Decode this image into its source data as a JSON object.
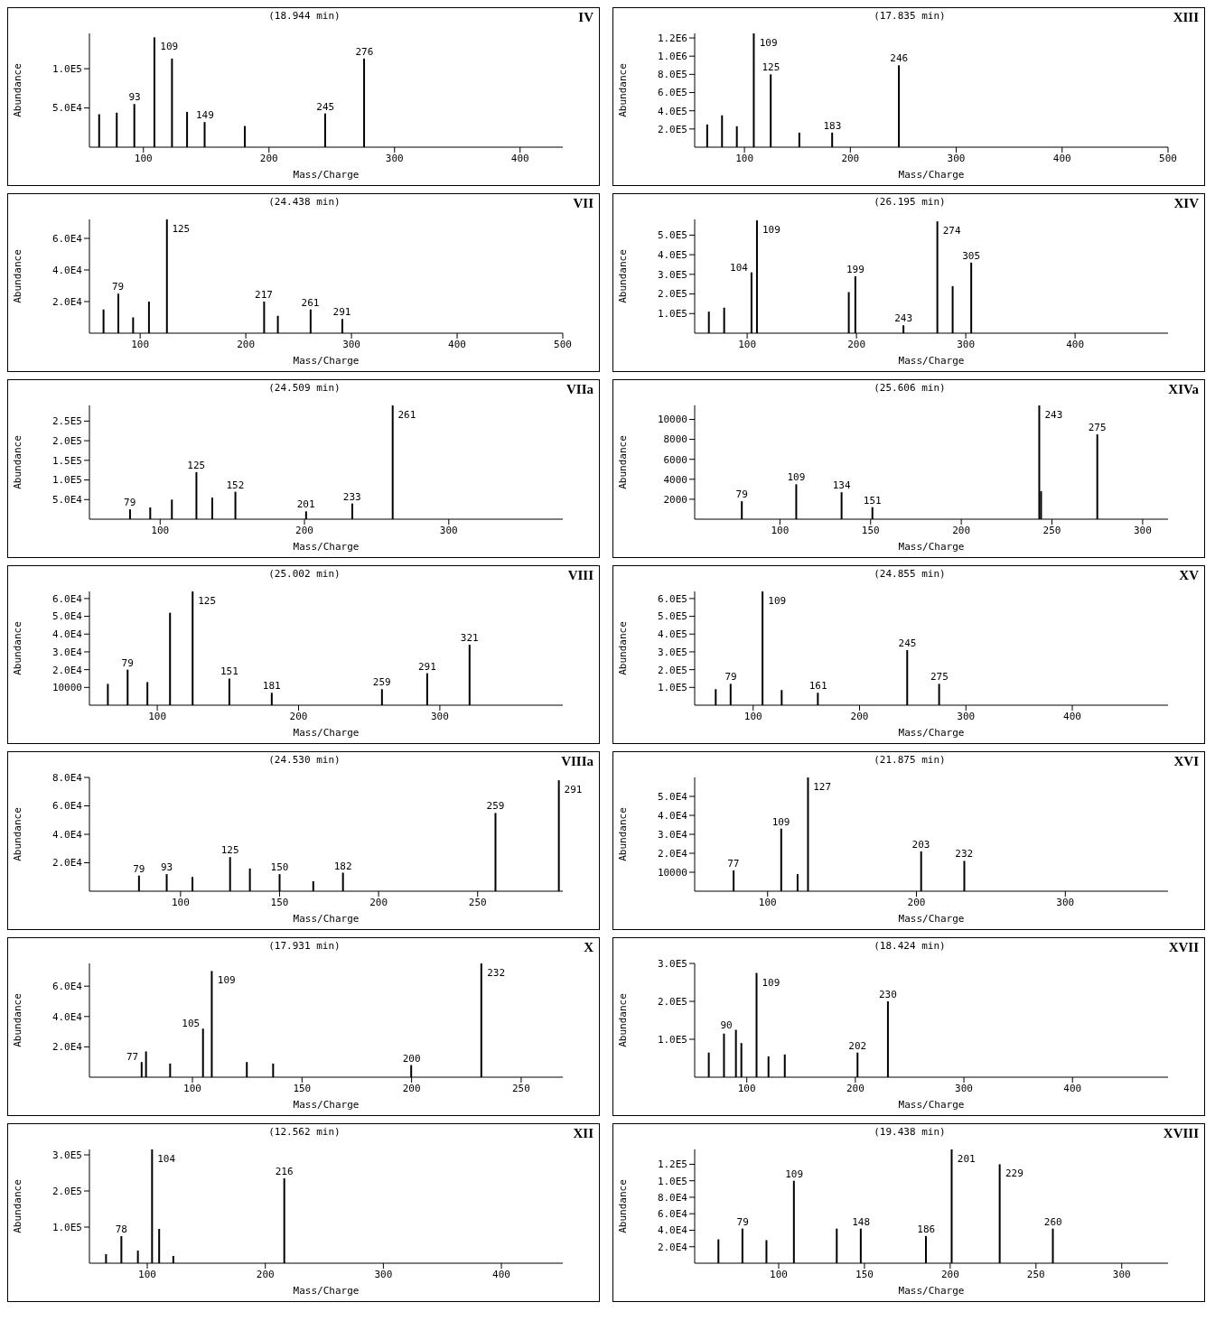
{
  "chart_data": [
    {
      "type": "bar",
      "title": "(18.944 min)",
      "xlabel": "Mass/Charge",
      "ylabel": "Abundance",
      "color": "#000000",
      "x": [
        65,
        79,
        93,
        109,
        123,
        135,
        149,
        181,
        245,
        276
      ],
      "values": [
        42000,
        44000,
        55000,
        140000,
        113000,
        45000,
        32000,
        27000,
        43000,
        113000
      ],
      "xlim": [
        57,
        434
      ],
      "ylim": [
        0,
        145000
      ],
      "xticks": [
        100,
        200,
        300,
        400
      ],
      "yticks": [
        {
          "value": 50000,
          "label": "5.0E4"
        },
        {
          "value": 100000,
          "label": "1.0E5"
        }
      ],
      "annotations": [
        "IV",
        {
          "text": "93",
          "x": 93,
          "y": 55000
        },
        {
          "text": "109",
          "x": 109,
          "y": 140000
        },
        {
          "text": "149",
          "x": 149,
          "y": 32000
        },
        {
          "text": "245",
          "x": 245,
          "y": 43000
        },
        {
          "text": "276",
          "x": 276,
          "y": 113000
        }
      ]
    },
    {
      "type": "bar",
      "title": "(17.835 min)",
      "xlabel": "Mass/Charge",
      "ylabel": "Abundance",
      "color": "#000000",
      "x": [
        65,
        79,
        93,
        109,
        125,
        152,
        183,
        246
      ],
      "values": [
        250000,
        350000,
        230000,
        1250000,
        800000,
        160000,
        160000,
        900000
      ],
      "xlim": [
        53,
        500
      ],
      "ylim": [
        0,
        1250000
      ],
      "xticks": [
        100,
        200,
        300,
        400,
        500
      ],
      "yticks": [
        {
          "value": 200000,
          "label": "2.0E5"
        },
        {
          "value": 400000,
          "label": "4.0E5"
        },
        {
          "value": 600000,
          "label": "6.0E5"
        },
        {
          "value": 800000,
          "label": "8.0E5"
        },
        {
          "value": 1000000,
          "label": "1.0E6"
        },
        {
          "value": 1200000,
          "label": "1.2E6"
        }
      ],
      "annotations": [
        "XIII",
        {
          "text": "109",
          "x": 109,
          "y": 1250000
        },
        {
          "text": "125",
          "x": 125,
          "y": 800000
        },
        {
          "text": "183",
          "x": 183,
          "y": 160000
        },
        {
          "text": "246",
          "x": 246,
          "y": 900000
        }
      ]
    },
    {
      "type": "bar",
      "title": "(24.438 min)",
      "xlabel": "Mass/Charge",
      "ylabel": "Abundance",
      "color": "#000000",
      "x": [
        65,
        79,
        93,
        108,
        125,
        217,
        230,
        261,
        291
      ],
      "values": [
        15000,
        25000,
        10000,
        20000,
        72000,
        20000,
        11000,
        15000,
        9000
      ],
      "xlim": [
        52,
        500
      ],
      "ylim": [
        0,
        72000
      ],
      "xticks": [
        100,
        200,
        300,
        400,
        500
      ],
      "yticks": [
        {
          "value": 20000,
          "label": "2.0E4"
        },
        {
          "value": 40000,
          "label": "4.0E4"
        },
        {
          "value": 60000,
          "label": "6.0E4"
        }
      ],
      "annotations": [
        "VII",
        {
          "text": "79",
          "x": 79,
          "y": 25000
        },
        {
          "text": "125",
          "x": 125,
          "y": 72000
        },
        {
          "text": "217",
          "x": 217,
          "y": 20000
        },
        {
          "text": "261",
          "x": 261,
          "y": 15000
        },
        {
          "text": "291",
          "x": 291,
          "y": 9000
        }
      ]
    },
    {
      "type": "bar",
      "title": "(26.195 min)",
      "xlabel": "Mass/Charge",
      "ylabel": "Abundance",
      "color": "#000000",
      "x": [
        65,
        79,
        104,
        109,
        193,
        199,
        243,
        274,
        288,
        305
      ],
      "values": [
        110000,
        130000,
        310000,
        575000,
        210000,
        290000,
        40000,
        570000,
        240000,
        360000
      ],
      "xlim": [
        52,
        485
      ],
      "ylim": [
        0,
        580000
      ],
      "xticks": [
        100,
        200,
        300,
        400
      ],
      "yticks": [
        {
          "value": 100000,
          "label": "1.0E5"
        },
        {
          "value": 200000,
          "label": "2.0E5"
        },
        {
          "value": 300000,
          "label": "3.0E5"
        },
        {
          "value": 400000,
          "label": "4.0E5"
        },
        {
          "value": 500000,
          "label": "5.0E5"
        }
      ],
      "annotations": [
        "XIV",
        {
          "text": "104",
          "x": 104,
          "y": 310000
        },
        {
          "text": "109",
          "x": 109,
          "y": 575000
        },
        {
          "text": "199",
          "x": 199,
          "y": 290000
        },
        {
          "text": "243",
          "x": 243,
          "y": 40000
        },
        {
          "text": "274",
          "x": 274,
          "y": 570000
        },
        {
          "text": "305",
          "x": 305,
          "y": 360000
        }
      ]
    },
    {
      "type": "bar",
      "title": "(24.509 min)",
      "xlabel": "Mass/Charge",
      "ylabel": "Abundance",
      "color": "#000000",
      "x": [
        79,
        93,
        108,
        125,
        136,
        152,
        201,
        233,
        261
      ],
      "values": [
        25000,
        30000,
        50000,
        120000,
        55000,
        70000,
        20000,
        40000,
        290000
      ],
      "xlim": [
        51,
        379
      ],
      "ylim": [
        0,
        290000
      ],
      "xticks": [
        100,
        200,
        300
      ],
      "yticks": [
        {
          "value": 50000,
          "label": "5.0E4"
        },
        {
          "value": 100000,
          "label": "1.0E5"
        },
        {
          "value": 150000,
          "label": "1.5E5"
        },
        {
          "value": 200000,
          "label": "2.0E5"
        },
        {
          "value": 250000,
          "label": "2.5E5"
        }
      ],
      "annotations": [
        "VIIa",
        {
          "text": "79",
          "x": 79,
          "y": 25000
        },
        {
          "text": "125",
          "x": 125,
          "y": 120000
        },
        {
          "text": "152",
          "x": 152,
          "y": 70000
        },
        {
          "text": "201",
          "x": 201,
          "y": 20000
        },
        {
          "text": "233",
          "x": 233,
          "y": 40000
        },
        {
          "text": "261",
          "x": 261,
          "y": 290000
        }
      ]
    },
    {
      "type": "bar",
      "title": "(25.606 min)",
      "xlabel": "Mass/Charge",
      "ylabel": "Abundance",
      "color": "#000000",
      "x": [
        79,
        109,
        134,
        151,
        243,
        244,
        275
      ],
      "values": [
        1800,
        3500,
        2700,
        1200,
        11400,
        2800,
        8500
      ],
      "xlim": [
        53,
        314
      ],
      "ylim": [
        0,
        11400
      ],
      "xticks": [
        100,
        150,
        200,
        250,
        300
      ],
      "yticks": [
        2000,
        4000,
        6000,
        8000,
        10000
      ],
      "annotations": [
        "XIVa",
        {
          "text": "79",
          "x": 79,
          "y": 1800
        },
        {
          "text": "109",
          "x": 109,
          "y": 3500
        },
        {
          "text": "134",
          "x": 134,
          "y": 2700
        },
        {
          "text": "151",
          "x": 151,
          "y": 1200
        },
        {
          "text": "243",
          "x": 243,
          "y": 11400
        },
        {
          "text": "275",
          "x": 275,
          "y": 8500
        }
      ]
    },
    {
      "type": "bar",
      "title": "(25.002 min)",
      "xlabel": "Mass/Charge",
      "ylabel": "Abundance",
      "color": "#000000",
      "x": [
        65,
        79,
        93,
        109,
        125,
        151,
        181,
        259,
        291,
        321
      ],
      "values": [
        12000,
        20000,
        13000,
        52000,
        64000,
        15000,
        7000,
        9000,
        18000,
        34000
      ],
      "xlim": [
        52,
        387
      ],
      "ylim": [
        0,
        64000
      ],
      "xticks": [
        100,
        200,
        300
      ],
      "yticks": [
        10000,
        {
          "value": 20000,
          "label": "2.0E4"
        },
        {
          "value": 30000,
          "label": "3.0E4"
        },
        {
          "value": 40000,
          "label": "4.0E4"
        },
        {
          "value": 50000,
          "label": "5.0E4"
        },
        {
          "value": 60000,
          "label": "6.0E4"
        }
      ],
      "annotations": [
        "VIII",
        {
          "text": "79",
          "x": 79,
          "y": 20000
        },
        {
          "text": "125",
          "x": 125,
          "y": 64000
        },
        {
          "text": "151",
          "x": 151,
          "y": 15000
        },
        {
          "text": "181",
          "x": 181,
          "y": 7000
        },
        {
          "text": "259",
          "x": 259,
          "y": 9000
        },
        {
          "text": "291",
          "x": 291,
          "y": 18000
        },
        {
          "text": "321",
          "x": 321,
          "y": 34000
        }
      ]
    },
    {
      "type": "bar",
      "title": "(24.855 min)",
      "xlabel": "Mass/Charge",
      "ylabel": "Abundance",
      "color": "#000000",
      "x": [
        65,
        79,
        109,
        127,
        161,
        245,
        275
      ],
      "values": [
        90000,
        120000,
        640000,
        85000,
        70000,
        310000,
        120000
      ],
      "xlim": [
        45,
        490
      ],
      "ylim": [
        0,
        640000
      ],
      "xticks": [
        100,
        200,
        300,
        400
      ],
      "yticks": [
        {
          "value": 100000,
          "label": "1.0E5"
        },
        {
          "value": 200000,
          "label": "2.0E5"
        },
        {
          "value": 300000,
          "label": "3.0E5"
        },
        {
          "value": 400000,
          "label": "4.0E5"
        },
        {
          "value": 500000,
          "label": "5.0E5"
        },
        {
          "value": 600000,
          "label": "6.0E5"
        }
      ],
      "annotations": [
        "XV",
        {
          "text": "79",
          "x": 79,
          "y": 120000
        },
        {
          "text": "109",
          "x": 109,
          "y": 640000
        },
        {
          "text": "161",
          "x": 161,
          "y": 70000
        },
        {
          "text": "245",
          "x": 245,
          "y": 310000
        },
        {
          "text": "275",
          "x": 275,
          "y": 120000
        }
      ]
    },
    {
      "type": "bar",
      "title": "(24.530 min)",
      "xlabel": "Mass/Charge",
      "ylabel": "Abundance",
      "color": "#000000",
      "x": [
        79,
        93,
        106,
        125,
        135,
        150,
        167,
        182,
        259,
        291
      ],
      "values": [
        11000,
        12000,
        10000,
        24000,
        16000,
        12000,
        7000,
        13000,
        55000,
        78000
      ],
      "xlim": [
        54,
        293
      ],
      "ylim": [
        0,
        80000
      ],
      "xticks": [
        100,
        150,
        200,
        250
      ],
      "yticks": [
        {
          "value": 20000,
          "label": "2.0E4"
        },
        {
          "value": 40000,
          "label": "4.0E4"
        },
        {
          "value": 60000,
          "label": "6.0E4"
        },
        {
          "value": 80000,
          "label": "8.0E4"
        }
      ],
      "annotations": [
        "VIIIa",
        {
          "text": "79",
          "x": 79,
          "y": 11000
        },
        {
          "text": "93",
          "x": 93,
          "y": 12000
        },
        {
          "text": "125",
          "x": 125,
          "y": 24000
        },
        {
          "text": "150",
          "x": 150,
          "y": 12000
        },
        {
          "text": "182",
          "x": 182,
          "y": 13000
        },
        {
          "text": "259",
          "x": 259,
          "y": 55000
        },
        {
          "text": "291",
          "x": 291,
          "y": 78000
        }
      ]
    },
    {
      "type": "bar",
      "title": "(21.875 min)",
      "xlabel": "Mass/Charge",
      "ylabel": "Abundance",
      "color": "#000000",
      "x": [
        77,
        109,
        120,
        127,
        203,
        232
      ],
      "values": [
        11000,
        33000,
        9000,
        60000,
        21000,
        16000
      ],
      "xlim": [
        51,
        369
      ],
      "ylim": [
        0,
        60000
      ],
      "xticks": [
        100,
        200,
        300
      ],
      "yticks": [
        10000,
        {
          "value": 20000,
          "label": "2.0E4"
        },
        {
          "value": 30000,
          "label": "3.0E4"
        },
        {
          "value": 40000,
          "label": "4.0E4"
        },
        {
          "value": 50000,
          "label": "5.0E4"
        }
      ],
      "annotations": [
        "XVI",
        {
          "text": "77",
          "x": 77,
          "y": 11000
        },
        {
          "text": "109",
          "x": 109,
          "y": 33000
        },
        {
          "text": "127",
          "x": 127,
          "y": 60000
        },
        {
          "text": "203",
          "x": 203,
          "y": 21000
        },
        {
          "text": "232",
          "x": 232,
          "y": 16000
        }
      ]
    },
    {
      "type": "bar",
      "title": "(17.931 min)",
      "xlabel": "Mass/Charge",
      "ylabel": "Abundance",
      "color": "#000000",
      "x": [
        77,
        79,
        90,
        105,
        109,
        125,
        137,
        200,
        232
      ],
      "values": [
        10000,
        17000,
        9000,
        32000,
        70000,
        10000,
        9000,
        8000,
        75000
      ],
      "xlim": [
        53,
        269
      ],
      "ylim": [
        0,
        75000
      ],
      "xticks": [
        100,
        150,
        200,
        250
      ],
      "yticks": [
        {
          "value": 20000,
          "label": "2.0E4"
        },
        {
          "value": 40000,
          "label": "4.0E4"
        },
        {
          "value": 60000,
          "label": "6.0E4"
        }
      ],
      "annotations": [
        "X",
        {
          "text": "77",
          "x": 77,
          "y": 10000
        },
        {
          "text": "105",
          "x": 105,
          "y": 32000
        },
        {
          "text": "109",
          "x": 109,
          "y": 70000
        },
        {
          "text": "200",
          "x": 200,
          "y": 8000
        },
        {
          "text": "232",
          "x": 232,
          "y": 75000
        }
      ]
    },
    {
      "type": "bar",
      "title": "(18.424 min)",
      "xlabel": "Mass/Charge",
      "ylabel": "Abundance",
      "color": "#000000",
      "x": [
        65,
        79,
        90,
        95,
        109,
        120,
        135,
        202,
        230
      ],
      "values": [
        65000,
        115000,
        125000,
        90000,
        275000,
        55000,
        60000,
        65000,
        200000
      ],
      "xlim": [
        52,
        488
      ],
      "ylim": [
        0,
        300000
      ],
      "xticks": [
        100,
        200,
        300,
        400
      ],
      "yticks": [
        {
          "value": 100000,
          "label": "1.0E5"
        },
        {
          "value": 200000,
          "label": "2.0E5"
        },
        {
          "value": 300000,
          "label": "3.0E5"
        }
      ],
      "annotations": [
        "XVII",
        {
          "text": "90",
          "x": 90,
          "y": 125000
        },
        {
          "text": "109",
          "x": 109,
          "y": 275000
        },
        {
          "text": "202",
          "x": 202,
          "y": 65000
        },
        {
          "text": "230",
          "x": 230,
          "y": 200000
        }
      ]
    },
    {
      "type": "bar",
      "title": "(12.562 min)",
      "xlabel": "Mass/Charge",
      "ylabel": "Abundance",
      "color": "#000000",
      "x": [
        65,
        78,
        92,
        104,
        110,
        122,
        216
      ],
      "values": [
        25000,
        75000,
        35000,
        315000,
        95000,
        20000,
        235000
      ],
      "xlim": [
        51,
        452
      ],
      "ylim": [
        0,
        315000
      ],
      "xticks": [
        100,
        200,
        300,
        400
      ],
      "yticks": [
        {
          "value": 100000,
          "label": "1.0E5"
        },
        {
          "value": 200000,
          "label": "2.0E5"
        },
        {
          "value": 300000,
          "label": "3.0E5"
        }
      ],
      "annotations": [
        "XII",
        {
          "text": "78",
          "x": 78,
          "y": 75000
        },
        {
          "text": "104",
          "x": 104,
          "y": 315000
        },
        {
          "text": "216",
          "x": 216,
          "y": 235000
        }
      ]
    },
    {
      "type": "bar",
      "title": "(19.438 min)",
      "xlabel": "Mass/Charge",
      "ylabel": "Abundance",
      "color": "#000000",
      "x": [
        65,
        79,
        93,
        109,
        134,
        148,
        186,
        201,
        229,
        260
      ],
      "values": [
        29000,
        42000,
        28000,
        100000,
        42000,
        42000,
        33000,
        138000,
        120000,
        42000
      ],
      "xlim": [
        51,
        327
      ],
      "ylim": [
        0,
        138000
      ],
      "xticks": [
        100,
        150,
        200,
        250,
        300
      ],
      "yticks": [
        {
          "value": 20000,
          "label": "2.0E4"
        },
        {
          "value": 40000,
          "label": "4.0E4"
        },
        {
          "value": 60000,
          "label": "6.0E4"
        },
        {
          "value": 80000,
          "label": "8.0E4"
        },
        {
          "value": 100000,
          "label": "1.0E5"
        },
        {
          "value": 120000,
          "label": "1.2E5"
        }
      ],
      "annotations": [
        "XVIII",
        {
          "text": "79",
          "x": 79,
          "y": 42000
        },
        {
          "text": "109",
          "x": 109,
          "y": 100000
        },
        {
          "text": "148",
          "x": 148,
          "y": 42000
        },
        {
          "text": "186",
          "x": 186,
          "y": 33000
        },
        {
          "text": "201",
          "x": 201,
          "y": 138000
        },
        {
          "text": "229",
          "x": 229,
          "y": 120000
        },
        {
          "text": "260",
          "x": 260,
          "y": 42000
        }
      ]
    }
  ]
}
